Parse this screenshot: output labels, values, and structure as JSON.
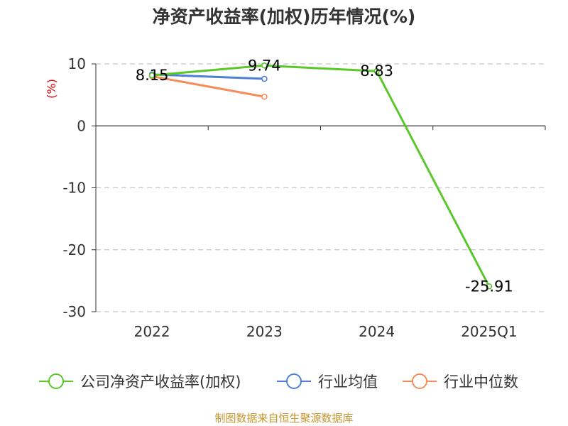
{
  "chart_data": {
    "type": "line",
    "title": "净资产收益率(加权)历年情况(%)",
    "ylabel": "(%)",
    "xlabel": "",
    "categories": [
      "2022",
      "2023",
      "2024",
      "2025Q1"
    ],
    "ylim": [
      -30,
      10
    ],
    "yticks": [
      10,
      0,
      -10,
      -20,
      -30
    ],
    "grid": true,
    "legend_position": "bottom",
    "series": [
      {
        "name": "公司净资产收益率(加权)",
        "color": "#5ac82a",
        "values": [
          8.15,
          9.74,
          8.83,
          -25.91
        ],
        "labels": [
          "8.15",
          "9.74",
          "8.83",
          "-25.91"
        ]
      },
      {
        "name": "行业均值",
        "color": "#4f7fd9",
        "values": [
          8.3,
          7.6,
          null,
          null
        ],
        "labels": []
      },
      {
        "name": "行业中位数",
        "color": "#f58d5a",
        "values": [
          8.0,
          4.7,
          null,
          null
        ],
        "labels": []
      }
    ]
  },
  "source": "制图数据来自恒生聚源数据库"
}
